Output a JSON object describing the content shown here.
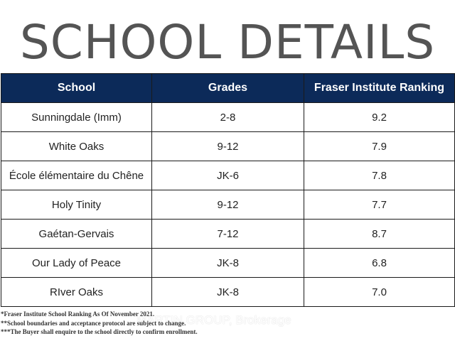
{
  "title": "SCHOOL DETAILS",
  "table": {
    "headers": [
      "School",
      "Grades",
      "Fraser Institute Ranking"
    ],
    "rows": [
      [
        "Sunningdale (Imm)",
        "2-8",
        "9.2"
      ],
      [
        "White Oaks",
        "9-12",
        "7.9"
      ],
      [
        "École élémentaire du Chêne",
        "JK-6",
        "7.8"
      ],
      [
        "Holy Tinity",
        "9-12",
        "7.7"
      ],
      [
        "Gaétan-Gervais",
        "7-12",
        "8.7"
      ],
      [
        "Our Lady of Peace",
        "JK-8",
        "6.8"
      ],
      [
        "RIver Oaks",
        "JK-8",
        "7.0"
      ]
    ]
  },
  "watermark": "MARTIN GROUP, Brokerage",
  "footnotes": [
    "*Fraser Institute School Ranking As Of November 2021.",
    "**School boundaries and acceptance protocol are subject to change.",
    "***The Buyer shall enquire to the school directly to confirm enrollment."
  ],
  "colors": {
    "header_bg": "#0c2a59",
    "header_text": "#ffffff",
    "title_text": "#545454",
    "border": "#1a1a1a"
  }
}
